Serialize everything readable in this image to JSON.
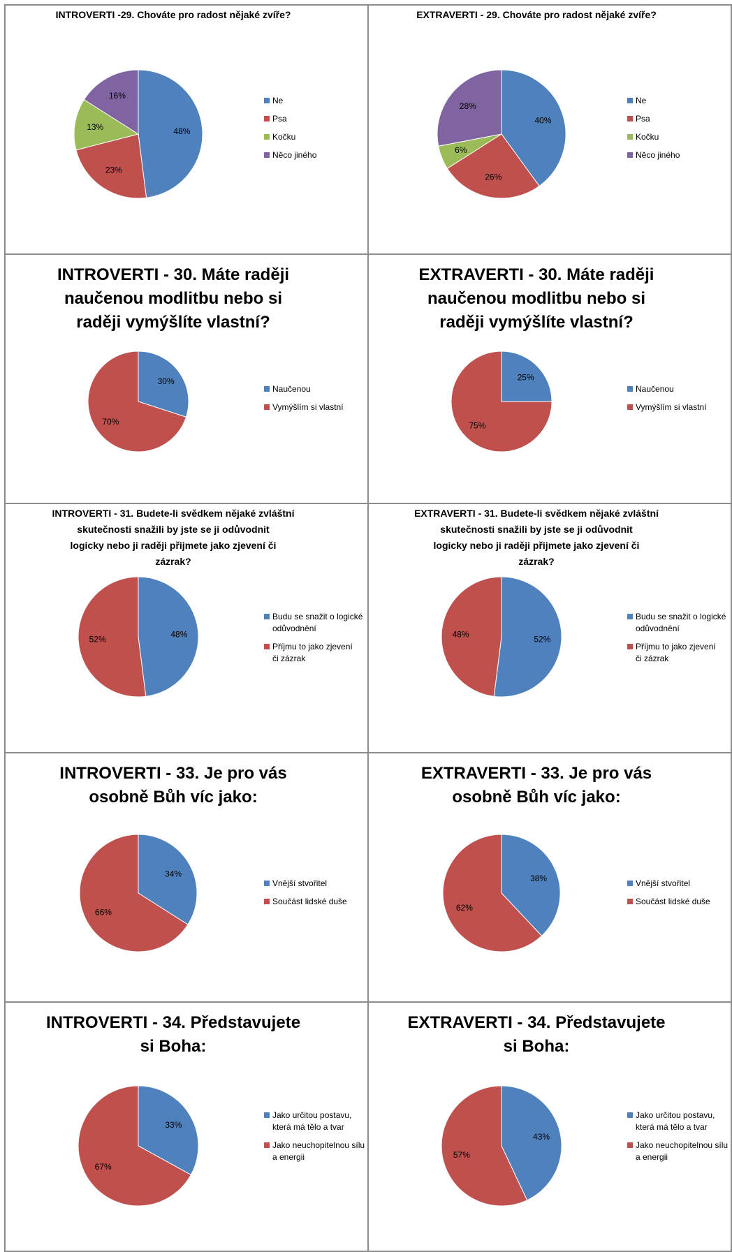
{
  "chart_data": [
    {
      "type": "pie",
      "title": "INTROVERTI -29. Chováte pro radost nějaké zvíře?",
      "title_size": "small",
      "categories": [
        "Ne",
        "Psa",
        "Kočku",
        "Něco jiného"
      ],
      "values": [
        48,
        23,
        13,
        16
      ],
      "labels": [
        "48%",
        "23%",
        "13%",
        "16%"
      ],
      "colors": [
        "#4f81bd",
        "#c0504d",
        "#9bbb59",
        "#8064a2"
      ],
      "legend": "right"
    },
    {
      "type": "pie",
      "title": "EXTRAVERTI - 29. Chováte pro radost nějaké zvíře?",
      "title_size": "small",
      "categories": [
        "Ne",
        "Psa",
        "Kočku",
        "Něco jiného"
      ],
      "values": [
        40,
        26,
        6,
        28
      ],
      "labels": [
        "40%",
        "26%",
        "6%",
        "28%"
      ],
      "colors": [
        "#4f81bd",
        "#c0504d",
        "#9bbb59",
        "#8064a2"
      ],
      "legend": "right"
    },
    {
      "type": "pie",
      "title": "INTROVERTI - 30. Máte raději naučenou modlitbu nebo si raději vymýšlíte vlastní?",
      "title_size": "large",
      "categories": [
        "Naučenou",
        "Vymýšlím si vlastní"
      ],
      "values": [
        30,
        70
      ],
      "labels": [
        "30%",
        "70%"
      ],
      "colors": [
        "#4f81bd",
        "#c0504d"
      ],
      "legend": "right"
    },
    {
      "type": "pie",
      "title": "EXTRAVERTI - 30. Máte raději naučenou modlitbu nebo si raději vymýšlíte vlastní?",
      "title_size": "large",
      "categories": [
        "Naučenou",
        "Vymýšlím si vlastní"
      ],
      "values": [
        25,
        75
      ],
      "labels": [
        "25%",
        "75%"
      ],
      "colors": [
        "#4f81bd",
        "#c0504d"
      ],
      "legend": "right"
    },
    {
      "type": "pie",
      "title": "INTROVERTI - 31. Budete-li svědkem nějaké zvláštní skutečnosti snažili by jste se ji odůvodnit logicky nebo ji raději přijmete jako zjevení či zázrak?",
      "title_size": "small",
      "categories": [
        "Budu se snažit o logické odůvodnění",
        "Příjmu to jako zjevení či zázrak"
      ],
      "values": [
        48,
        52
      ],
      "labels": [
        "48%",
        "52%"
      ],
      "colors": [
        "#4f81bd",
        "#c0504d"
      ],
      "legend": "right"
    },
    {
      "type": "pie",
      "title": "EXTRAVERTI - 31. Budete-li svědkem nějaké zvláštní skutečnosti snažili by jste se ji odůvodnit logicky nebo ji raději přijmete jako zjevení či zázrak?",
      "title_size": "small",
      "categories": [
        "Budu se snažit o logické odůvodnění",
        "Příjmu to jako zjevení či zázrak"
      ],
      "values": [
        52,
        48
      ],
      "labels": [
        "52%",
        "48%"
      ],
      "colors": [
        "#4f81bd",
        "#c0504d"
      ],
      "legend": "right"
    },
    {
      "type": "pie",
      "title": "INTROVERTI - 33. Je pro vás osobně Bůh víc jako:",
      "title_size": "large",
      "categories": [
        "Vnější stvořitel",
        "Součást lidské duše"
      ],
      "values": [
        34,
        66
      ],
      "labels": [
        "34%",
        "66%"
      ],
      "colors": [
        "#4f81bd",
        "#c0504d"
      ],
      "legend": "right"
    },
    {
      "type": "pie",
      "title": "EXTRAVERTI - 33. Je pro vás osobně Bůh víc jako:",
      "title_size": "large",
      "categories": [
        "Vnější stvořitel",
        "Součást lidské duše"
      ],
      "values": [
        38,
        62
      ],
      "labels": [
        "38%",
        "62%"
      ],
      "colors": [
        "#4f81bd",
        "#c0504d"
      ],
      "legend": "right"
    },
    {
      "type": "pie",
      "title": "INTROVERTI - 34. Představujete si Boha:",
      "title_size": "large",
      "categories": [
        "Jako určitou postavu, která má tělo a tvar",
        "Jako neuchopitelnou sílu a energii"
      ],
      "values": [
        33,
        67
      ],
      "labels": [
        "33%",
        "67%"
      ],
      "colors": [
        "#4f81bd",
        "#c0504d"
      ],
      "legend": "right"
    },
    {
      "type": "pie",
      "title": "EXTRAVERTI - 34. Představujete si Boha:",
      "title_size": "large",
      "categories": [
        "Jako určitou postavu, která má tělo a tvar",
        "Jako neuchopitelnou sílu a energii"
      ],
      "values": [
        43,
        57
      ],
      "labels": [
        "43%",
        "57%"
      ],
      "colors": [
        "#4f81bd",
        "#c0504d"
      ],
      "legend": "right"
    }
  ]
}
